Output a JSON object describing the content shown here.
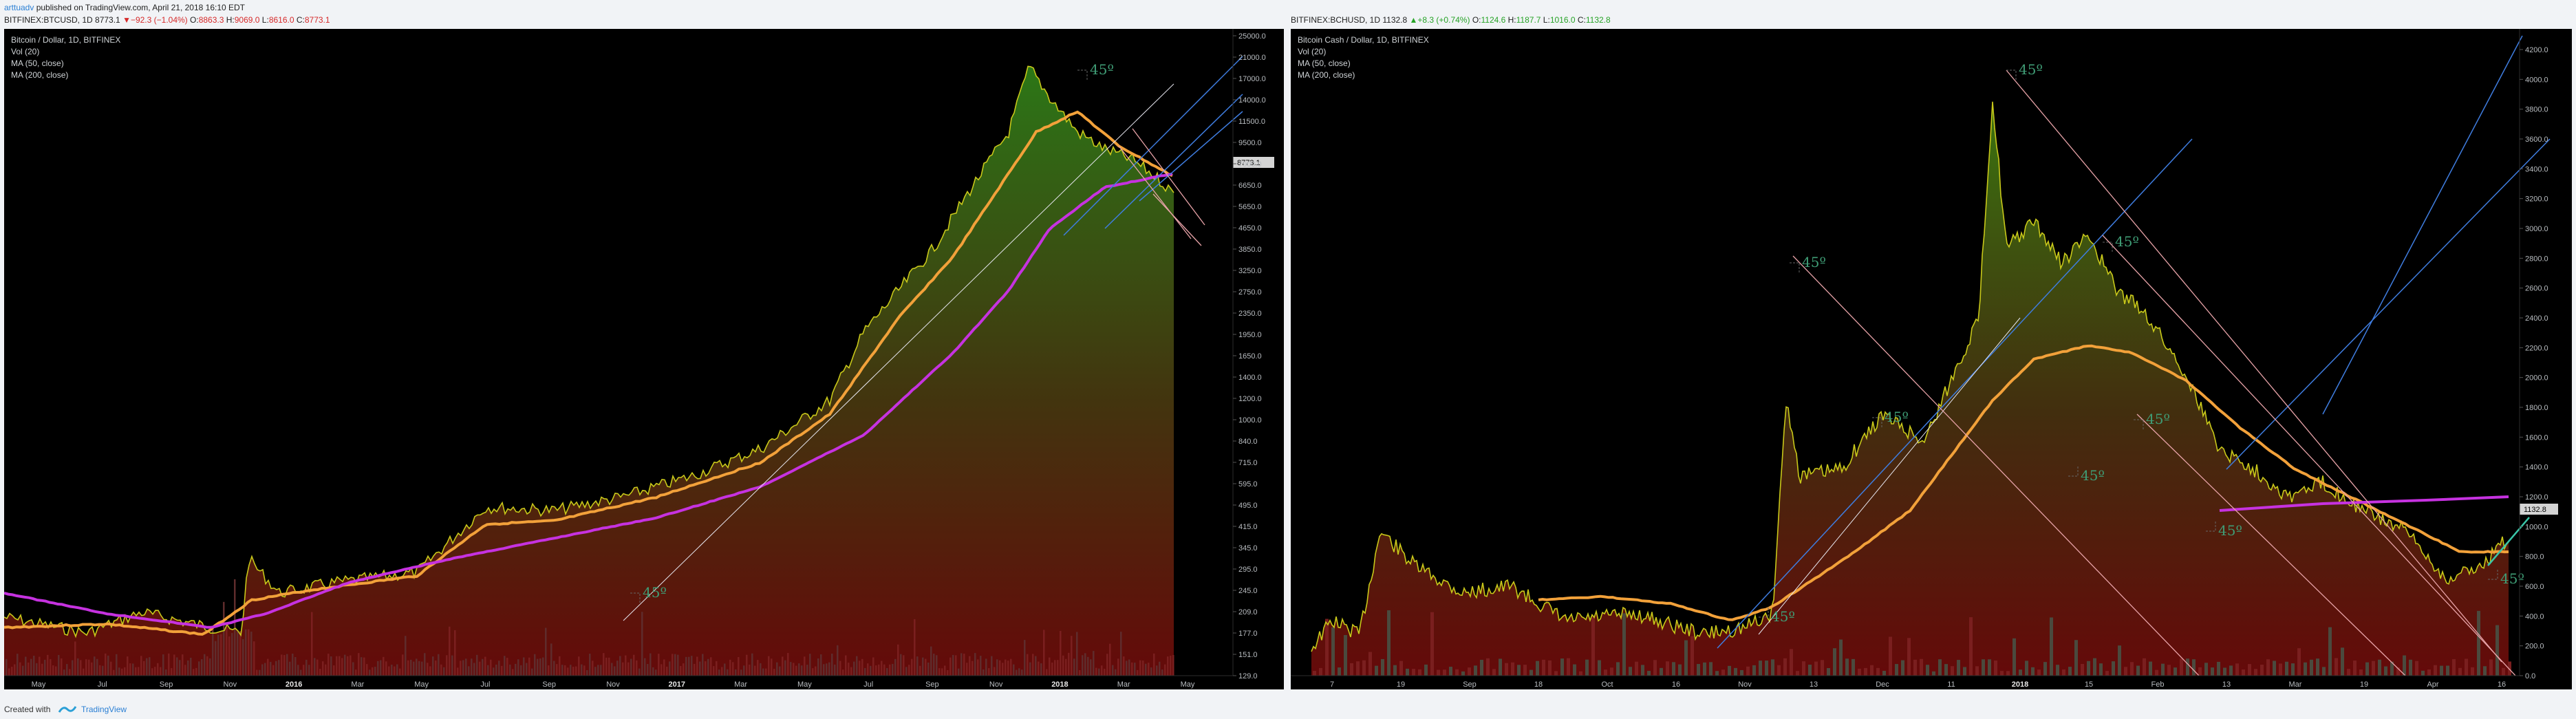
{
  "header": {
    "author": "arttuadv",
    "published": "published on TradingView.com, April 21, 2018 16:10 EDT"
  },
  "left_ticker": {
    "symbol": "BITFINEX:BTCUSD, 1D",
    "last": "8773.1",
    "change": "▼−92.3 (−1.04%)",
    "o_label": "O:",
    "o_value": "8863.3",
    "h_label": "H:",
    "h_value": "9069.0",
    "l_label": "L:",
    "l_value": "8616.0",
    "c_label": "C:",
    "c_value": "8773.1"
  },
  "right_ticker": {
    "symbol": "BITFINEX:BCHUSD, 1D",
    "last": "1132.8",
    "change": "▲+8.3 (+0.74%)",
    "o_label": "O:",
    "o_value": "1124.6",
    "h_label": "H:",
    "h_value": "1187.7",
    "l_label": "L:",
    "l_value": "1016.0",
    "c_label": "C:",
    "c_value": "1132.8"
  },
  "left_chart": {
    "title": "Bitcoin / Dollar, 1D, BITFINEX",
    "studies": [
      "Vol (20)",
      "MA (50, close)",
      "MA (200, close)"
    ],
    "annotation": "45º",
    "price_badge": "8773.1",
    "y_ticks": [
      "25000.0",
      "21000.0",
      "17000.0",
      "14000.0",
      "11500.0",
      "9500.0",
      "7900.0",
      "6650.0",
      "5650.0",
      "4650.0",
      "3850.0",
      "3250.0",
      "2750.0",
      "2350.0",
      "1950.0",
      "1650.0",
      "1400.0",
      "1200.0",
      "1000.0",
      "840.0",
      "715.0",
      "595.0",
      "495.0",
      "415.0",
      "345.0",
      "295.0",
      "245.0",
      "209.0",
      "177.0",
      "151.0",
      "129.0"
    ],
    "x_ticks": [
      "May",
      "Jul",
      "Sep",
      "Nov",
      "2016",
      "Mar",
      "May",
      "Jul",
      "Sep",
      "Nov",
      "2017",
      "Mar",
      "May",
      "Jul",
      "Sep",
      "Nov",
      "2018",
      "Mar",
      "May"
    ],
    "bold_x_ticks": [
      "2016",
      "2017",
      "2018"
    ]
  },
  "right_chart": {
    "title": "Bitcoin Cash / Dollar, 1D, BITFINEX",
    "studies": [
      "Vol (20)",
      "MA (50, close)",
      "MA (200, close)"
    ],
    "annotation": "45º",
    "price_badge": "1132.8",
    "y_ticks": [
      "4200.0",
      "4000.0",
      "3800.0",
      "3600.0",
      "3400.0",
      "3200.0",
      "3000.0",
      "2800.0",
      "2600.0",
      "2400.0",
      "2200.0",
      "2000.0",
      "1800.0",
      "1600.0",
      "1400.0",
      "1200.0",
      "1000.0",
      "800.0",
      "600.0",
      "400.0",
      "200.0",
      "0.0"
    ],
    "x_ticks": [
      "7",
      "19",
      "Sep",
      "18",
      "Oct",
      "16",
      "Nov",
      "13",
      "Dec",
      "11",
      "2018",
      "15",
      "Feb",
      "13",
      "Mar",
      "19",
      "Apr",
      "16"
    ],
    "bold_x_ticks": [
      "2018"
    ]
  },
  "footer": {
    "created": "Created with",
    "brand": "TradingView"
  },
  "colors": {
    "price_line": "#c8c81a",
    "ma50": "#f2a13a",
    "ma200": "#c632e0",
    "trend_blue": "#3f7de0",
    "trend_white": "#e7e7f0",
    "trend_pink": "#e8a3a8",
    "annot": "#3f9c75",
    "badge_bg": "#d4d4d4"
  }
}
